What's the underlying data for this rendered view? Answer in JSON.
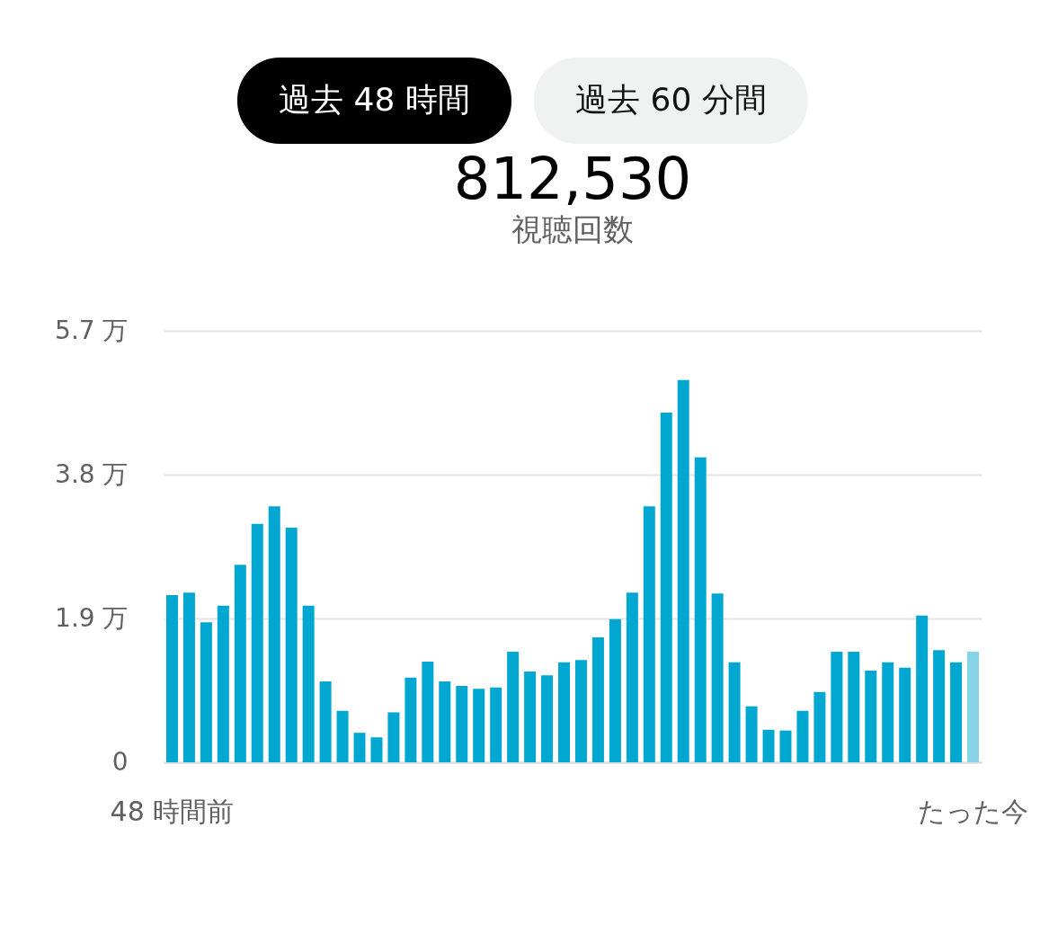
{
  "chart_data": {
    "type": "bar",
    "title": "812,530",
    "subtitle": "視聴回数",
    "annotations": [
      "過去 48 時間",
      "過去 60 分間"
    ],
    "categories": [
      "48 時間前",
      null,
      null,
      null,
      null,
      null,
      null,
      null,
      null,
      null,
      null,
      null,
      null,
      null,
      null,
      null,
      null,
      null,
      null,
      null,
      null,
      null,
      null,
      null,
      null,
      null,
      null,
      null,
      null,
      null,
      null,
      null,
      null,
      null,
      null,
      null,
      null,
      null,
      null,
      null,
      null,
      null,
      null,
      null,
      null,
      null,
      null,
      "たった今"
    ],
    "values": [
      2.21,
      2.24,
      1.85,
      2.07,
      2.61,
      3.15,
      3.38,
      3.1,
      2.07,
      1.07,
      0.68,
      0.39,
      0.33,
      0.66,
      1.12,
      1.33,
      1.07,
      1.01,
      0.97,
      0.99,
      1.46,
      1.2,
      1.15,
      1.32,
      1.35,
      1.65,
      1.89,
      2.24,
      3.38,
      4.62,
      5.05,
      4.03,
      2.23,
      1.32,
      0.74,
      0.43,
      0.42,
      0.68,
      0.93,
      1.46,
      1.46,
      1.21,
      1.32,
      1.25,
      1.94,
      1.48,
      1.32,
      1.46
    ],
    "colors": [
      "#00a7d0",
      "#00a7d0",
      "#00a7d0",
      "#00a7d0",
      "#00a7d0",
      "#00a7d0",
      "#00a7d0",
      "#00a7d0",
      "#00a7d0",
      "#00a7d0",
      "#00a7d0",
      "#00a7d0",
      "#00a7d0",
      "#00a7d0",
      "#00a7d0",
      "#00a7d0",
      "#00a7d0",
      "#00a7d0",
      "#00a7d0",
      "#00a7d0",
      "#00a7d0",
      "#00a7d0",
      "#00a7d0",
      "#00a7d0",
      "#00a7d0",
      "#00a7d0",
      "#00a7d0",
      "#00a7d0",
      "#00a7d0",
      "#00a7d0",
      "#00a7d0",
      "#00a7d0",
      "#00a7d0",
      "#00a7d0",
      "#00a7d0",
      "#00a7d0",
      "#00a7d0",
      "#00a7d0",
      "#00a7d0",
      "#00a7d0",
      "#00a7d0",
      "#00a7d0",
      "#00a7d0",
      "#00a7d0",
      "#00a7d0",
      "#00a7d0",
      "#00a7d0",
      "#87d3e8"
    ],
    "ylim": [
      0,
      5.7
    ],
    "yticks": [
      0,
      {
        "value": 1.9,
        "label": "1.9 万"
      },
      {
        "value": 3.8,
        "label": "3.8 万"
      },
      {
        "value": 5.7,
        "label": "5.7 万"
      }
    ],
    "grid": "y",
    "legend": false
  }
}
